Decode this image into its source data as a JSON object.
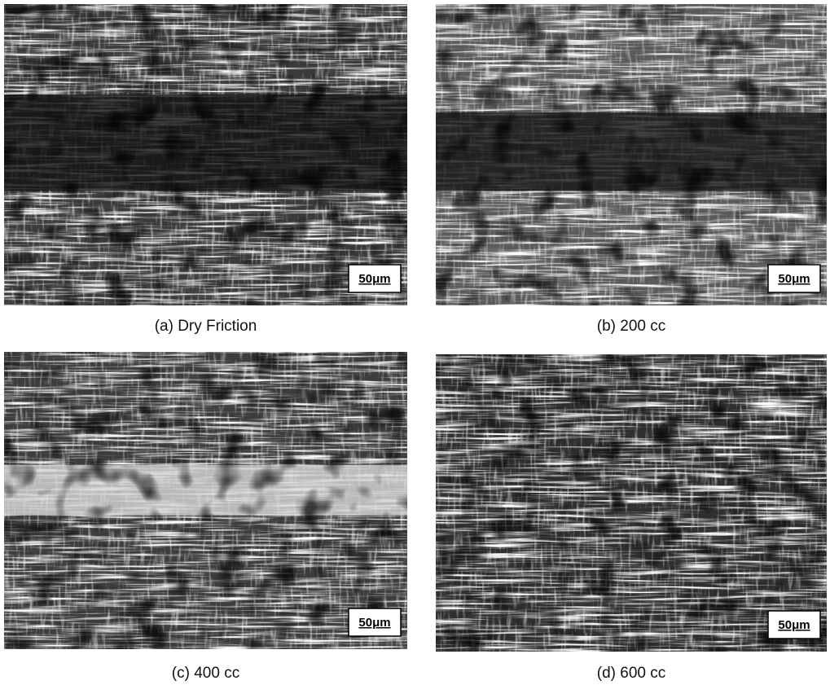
{
  "panels": [
    {
      "caption": "(a) Dry Friction",
      "scale_label": "50μm"
    },
    {
      "caption": "(b) 200 cc",
      "scale_label": "50μm"
    },
    {
      "caption": "(c) 400 cc",
      "scale_label": "50μm"
    },
    {
      "caption": "(d) 600 cc",
      "scale_label": "50μm"
    }
  ]
}
